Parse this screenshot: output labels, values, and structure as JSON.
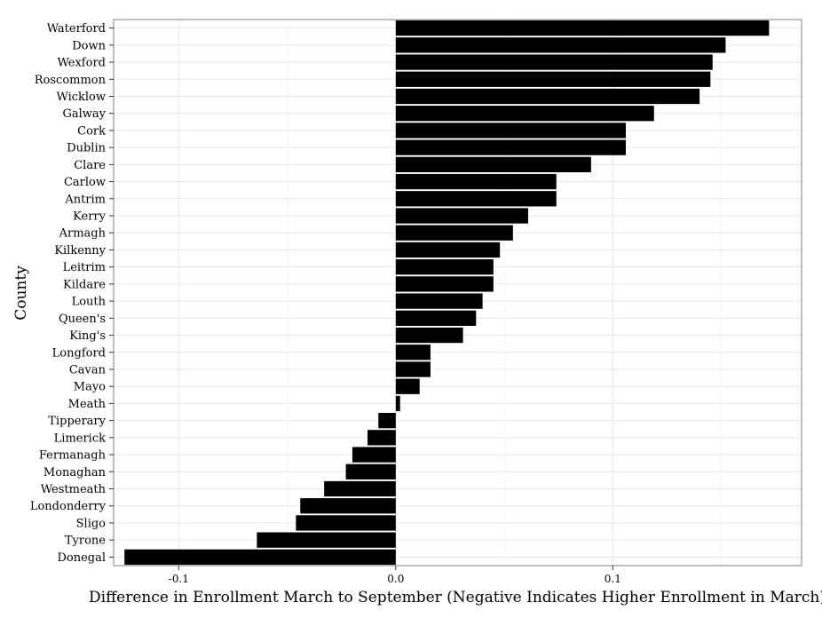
{
  "chart_data": {
    "type": "bar",
    "orientation": "horizontal",
    "xlabel": "Difference in Enrollment March to September (Negative Indicates Higher Enrollment in March)",
    "ylabel": "County",
    "xlim": [
      -0.13,
      0.187
    ],
    "xticks": [
      -0.1,
      0.0,
      0.1
    ],
    "xtick_labels": [
      "-0.1",
      "0.0",
      "0.1"
    ],
    "grid": true,
    "bar_color": "#000000",
    "categories": [
      "Waterford",
      "Down",
      "Wexford",
      "Roscommon",
      "Wicklow",
      "Galway",
      "Cork",
      "Dublin",
      "Clare",
      "Carlow",
      "Antrim",
      "Kerry",
      "Armagh",
      "Kilkenny",
      "Leitrim",
      "Kildare",
      "Louth",
      "Queen's",
      "King's",
      "Longford",
      "Cavan",
      "Mayo",
      "Meath",
      "Tipperary",
      "Limerick",
      "Fermanagh",
      "Monaghan",
      "Westmeath",
      "Londonderry",
      "Sligo",
      "Tyrone",
      "Donegal"
    ],
    "values": [
      0.172,
      0.152,
      0.146,
      0.145,
      0.14,
      0.119,
      0.106,
      0.106,
      0.09,
      0.074,
      0.074,
      0.061,
      0.054,
      0.048,
      0.045,
      0.045,
      0.04,
      0.037,
      0.031,
      0.016,
      0.016,
      0.011,
      0.002,
      -0.008,
      -0.013,
      -0.02,
      -0.023,
      -0.033,
      -0.044,
      -0.046,
      -0.064,
      -0.125
    ]
  }
}
